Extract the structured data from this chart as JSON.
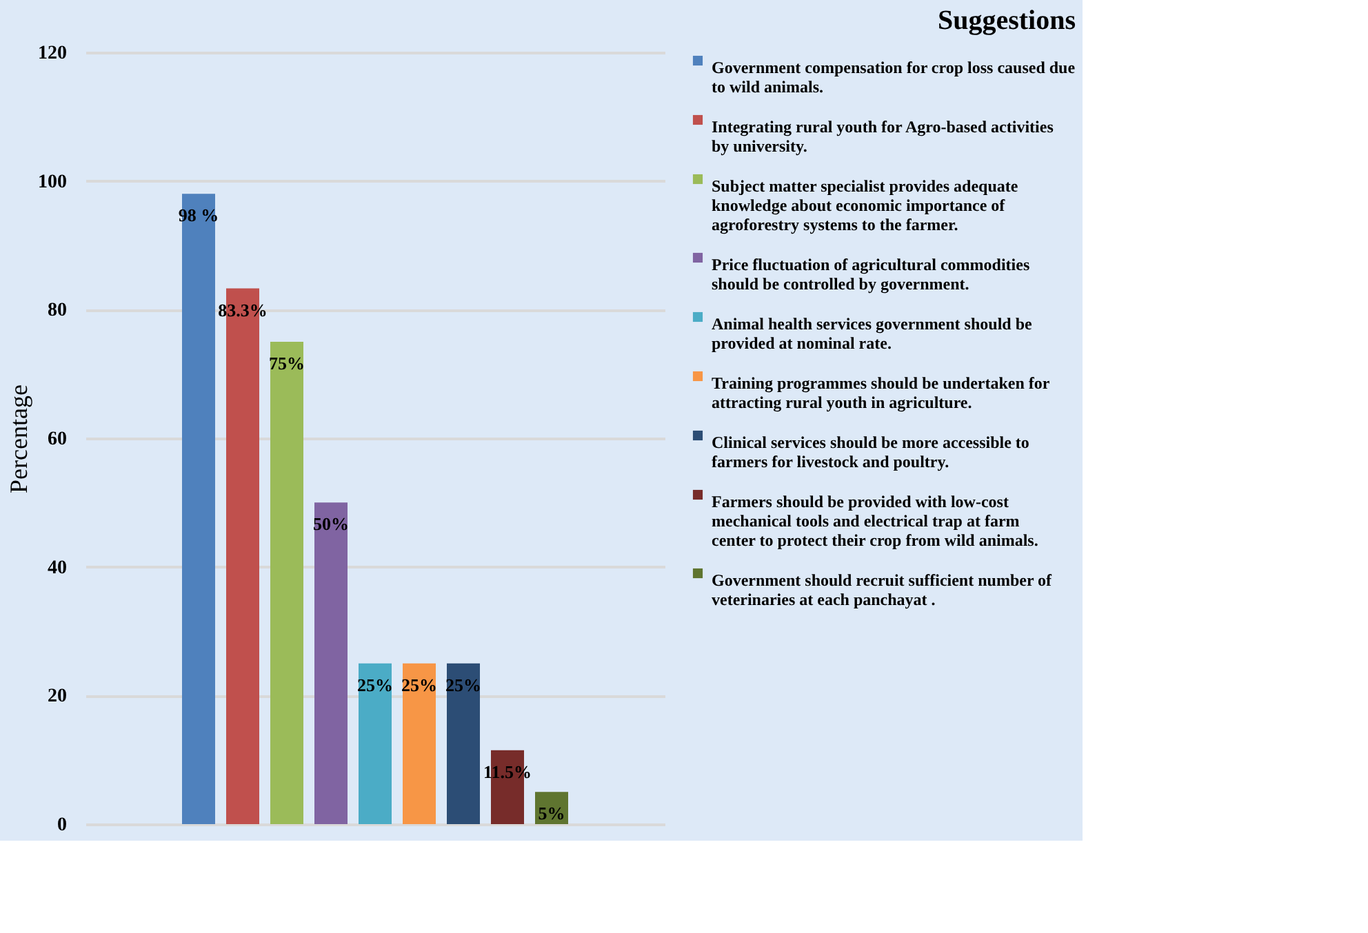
{
  "chart_data": {
    "type": "bar",
    "title": "Suggestions",
    "ylabel": "Percentage",
    "categories": [
      null
    ],
    "series": [
      {
        "name": "Government compensation for crop loss caused due to wild animals.",
        "color": "#4f81bd",
        "values": [
          98
        ],
        "value_labels": [
          "98 %"
        ]
      },
      {
        "name": "Integrating rural youth for Agro-based activities by university.",
        "color": "#c0504d",
        "values": [
          83.3
        ],
        "value_labels": [
          "83.3%"
        ]
      },
      {
        "name": "Subject matter specialist provides adequate knowledge about economic importance of agroforestry systems to the farmer.",
        "color": "#9bbb59",
        "values": [
          75
        ],
        "value_labels": [
          "75%"
        ]
      },
      {
        "name": "Price fluctuation of agricultural commodities should be controlled by government.",
        "color": "#8064a2",
        "values": [
          50
        ],
        "value_labels": [
          "50%"
        ]
      },
      {
        "name": "Animal health services government should be provided  at nominal rate.",
        "color": "#4bacc6",
        "values": [
          25
        ],
        "value_labels": [
          "25%"
        ]
      },
      {
        "name": "Training programmes should be undertaken for attracting rural youth in agriculture.",
        "color": "#f79646",
        "values": [
          25
        ],
        "value_labels": [
          "25%"
        ]
      },
      {
        "name": "Clinical services should be more accessible to farmers for livestock and poultry.",
        "color": "#2c4d75",
        "values": [
          25
        ],
        "value_labels": [
          "25%"
        ]
      },
      {
        "name": "Farmers should be provided with low-cost mechanical tools and electrical trap at farm center to protect their crop from wild animals.",
        "color": "#772c2a",
        "values": [
          11.5
        ],
        "value_labels": [
          "11.5%"
        ]
      },
      {
        "name": "Government should recruit sufficient  number of veterinaries at each panchayat .",
        "color": "#5f7530",
        "values": [
          5
        ],
        "value_labels": [
          "5%"
        ]
      }
    ],
    "ylim": [
      0,
      120
    ],
    "yticks": [
      0,
      20,
      40,
      60,
      80,
      100,
      120
    ],
    "grid": "y",
    "legend": "right"
  }
}
